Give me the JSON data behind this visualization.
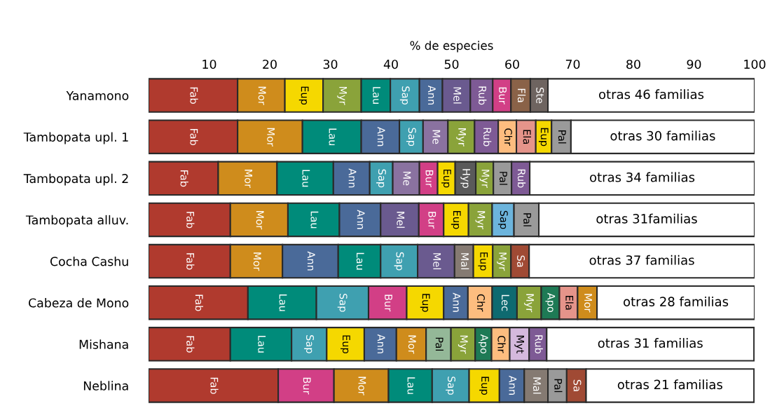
{
  "chart_data": {
    "type": "bar",
    "orientation": "horizontal",
    "stacked": true,
    "xlabel": "% de especies",
    "categories": [
      "Yanamono",
      "Tambopata upl. 1",
      "Tambopata upl. 2",
      "Tambopata alluv.",
      "Cocha Cashu",
      "Cabeza de Mono",
      "Mishana",
      "Neblina"
    ],
    "xlim": [
      0,
      100
    ],
    "xticks": [
      10,
      20,
      30,
      40,
      50,
      60,
      70,
      80,
      90,
      100
    ],
    "series": [
      {
        "values": [
          14.7,
          14.7,
          11.5,
          13.5,
          13.5,
          16.4,
          13.5,
          21.4
        ],
        "value_labels": [
          "Fab",
          "Fab",
          "Fab",
          "Fab",
          "Fab",
          "Fab",
          "Fab",
          "Fab"
        ],
        "colors": [
          "#b03a2e",
          "#b03a2e",
          "#b03a2e",
          "#b03a2e",
          "#b03a2e",
          "#b03a2e",
          "#b03a2e",
          "#b03a2e"
        ]
      },
      {
        "values": [
          7.8,
          10.7,
          9.7,
          9.5,
          8.6,
          11.3,
          10.1,
          9.2
        ],
        "value_labels": [
          "Mor",
          "Mor",
          "Mor",
          "Mor",
          "Mor",
          "Lau",
          "Lau",
          "Bur"
        ],
        "colors": [
          "#cf8c1c",
          "#cf8c1c",
          "#cf8c1c",
          "#cf8c1c",
          "#cf8c1c",
          "#008b7a",
          "#008b7a",
          "#d23f86"
        ]
      },
      {
        "values": [
          6.3,
          9.7,
          9.3,
          8.5,
          9.2,
          8.6,
          5.8,
          9.0
        ],
        "value_labels": [
          "Eup",
          "Lau",
          "Lau",
          "Lau",
          "Ann",
          "Sap",
          "Sap",
          "Mor"
        ],
        "colors": [
          "#f5d800",
          "#008b7a",
          "#008b7a",
          "#008b7a",
          "#4a6a99",
          "#3fa0b0",
          "#3fa0b0",
          "#cf8c1c"
        ]
      },
      {
        "values": [
          6.3,
          6.3,
          6.0,
          6.8,
          7.0,
          6.3,
          6.2,
          7.2
        ],
        "value_labels": [
          "Myr",
          "Ann",
          "Ann",
          "Ann",
          "Lau",
          "Bur",
          "Eup",
          "Lau"
        ],
        "colors": [
          "#8aa33a",
          "#4a6a99",
          "#4a6a99",
          "#4a6a99",
          "#008b7a",
          "#d23f86",
          "#f5d800",
          "#008b7a"
        ]
      },
      {
        "values": [
          4.8,
          3.9,
          3.8,
          6.3,
          6.1,
          6.1,
          5.3,
          6.1
        ],
        "value_labels": [
          "Lau",
          "Sap",
          "Sap",
          "Mel",
          "Sap",
          "Eup",
          "Ann",
          "Sap"
        ],
        "colors": [
          "#008b7a",
          "#3fa0b0",
          "#3fa0b0",
          "#6a5a8f",
          "#3fa0b0",
          "#f5d800",
          "#4a6a99",
          "#3fa0b0"
        ]
      },
      {
        "values": [
          4.8,
          4.1,
          4.4,
          4.1,
          6.1,
          4.0,
          4.9,
          5.0
        ],
        "value_labels": [
          "Sap",
          "Me",
          "Me",
          "Bur",
          "Mel",
          "Ann",
          "Mor",
          "Eup"
        ],
        "colors": [
          "#3fa0b0",
          "#8a72a0",
          "#8a72a0",
          "#d23f86",
          "#6a5a8f",
          "#4a6a99",
          "#cf8c1c",
          "#f5d800"
        ]
      },
      {
        "values": [
          3.8,
          4.4,
          3.0,
          4.1,
          3.1,
          4.0,
          4.1,
          4.1
        ],
        "value_labels": [
          "Ann",
          "Myr",
          "Bur",
          "Eup",
          "Mal",
          "Chr",
          "Pal",
          "Ann"
        ],
        "colors": [
          "#4a6a99",
          "#8aa33a",
          "#d23f86",
          "#f5d800",
          "#857a72",
          "#fdbd7f",
          "#94b898",
          "#4a6a99"
        ]
      },
      {
        "values": [
          4.6,
          3.9,
          2.9,
          3.9,
          3.2,
          4.1,
          4.0,
          3.9
        ],
        "value_labels": [
          "Mel",
          "Rub",
          "Eup",
          "Myr",
          "Eup",
          "Lec",
          "Myr",
          "Mal"
        ],
        "colors": [
          "#6a5a8f",
          "#7e5a95",
          "#f5d800",
          "#8aa33a",
          "#f5d800",
          "#0e6a70",
          "#8aa33a",
          "#857a72"
        ]
      },
      {
        "values": [
          3.7,
          3.0,
          3.4,
          3.6,
          3.0,
          4.0,
          2.7,
          3.1
        ],
        "value_labels": [
          "Rub",
          "Chr",
          "Hyp",
          "Sap",
          "Myr",
          "Myr",
          "Apo",
          "Pal"
        ],
        "colors": [
          "#7e5a95",
          "#fdbd7f",
          "#5a5a5a",
          "#6cb4dc",
          "#8aa33a",
          "#8aa33a",
          "#1e7a55",
          "#9a9a9a"
        ]
      },
      {
        "values": [
          3.0,
          3.2,
          2.9,
          4.1,
          3.0,
          3.0,
          3.0,
          3.2
        ],
        "value_labels": [
          "Bur",
          "Ela",
          "Myr",
          "Pal",
          "Sa",
          "Apo",
          "Chr",
          "Sa"
        ],
        "colors": [
          "#d23f86",
          "#e5948a",
          "#8aa33a",
          "#9a9a9a",
          "#a04a34",
          "#1e7a55",
          "#fdbd7f",
          "#a04a34"
        ]
      },
      {
        "values": [
          3.2,
          2.6,
          3.0,
          35.6,
          37.2,
          3.0,
          3.2,
          27.7
        ],
        "value_labels": [
          "Fla",
          "Eup",
          "Pal",
          "otras 31familias",
          "otras 37 familias",
          "Ela",
          "Myt",
          "otras 21 familias"
        ],
        "colors": [
          "#8a6248",
          "#f5d800",
          "#9a9a9a",
          "#ffffff",
          "#ffffff",
          "#e5948a",
          "#d5b9dd",
          "#ffffff"
        ]
      },
      {
        "values": [
          2.9,
          3.2,
          3.0,
          null,
          null,
          3.2,
          2.9,
          null
        ],
        "value_labels": [
          "Ste",
          "Pal",
          "Rub",
          null,
          null,
          "Mor",
          "Rub",
          null
        ],
        "colors": [
          "#6e6460",
          "#9a9a9a",
          "#7e5a95",
          null,
          null,
          "#cf8c1c",
          "#7e5a95",
          null
        ]
      },
      {
        "values": [
          34.1,
          30.3,
          37.1,
          null,
          null,
          26.0,
          34.2,
          null
        ],
        "value_labels": [
          "otras 46 familias",
          "otras 30 familias",
          "otras 34 familias",
          null,
          null,
          "otras 28 familias",
          "otras 31 familias",
          null
        ],
        "colors": [
          "#ffffff",
          "#ffffff",
          "#ffffff",
          null,
          null,
          "#ffffff",
          "#ffffff",
          null
        ]
      }
    ]
  }
}
